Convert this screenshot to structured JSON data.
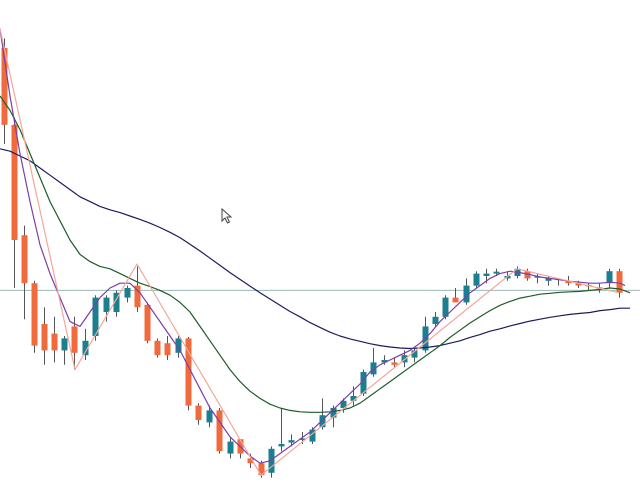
{
  "chart_data": {
    "type": "candlestick",
    "ylim": [
      0,
      100
    ],
    "grid": false,
    "colors": {
      "up": "#1a7f8e",
      "down": "#f06a3c",
      "hline": "#9ab8b4",
      "ma_fast": "#7b3fa8",
      "ma_mid": "#1e5c2a",
      "ma_slow": "#1c1c5c",
      "zigzag": "#f2a79a",
      "wick": "#555555"
    },
    "hline_value": 39.5,
    "candles": [
      {
        "x": 4,
        "o": 90.0,
        "h": 92.0,
        "l": 70.0,
        "c": 74.0
      },
      {
        "x": 14,
        "o": 74.0,
        "h": 75.5,
        "l": 40.0,
        "c": 50.0
      },
      {
        "x": 24,
        "o": 51.0,
        "h": 53.0,
        "l": 33.5,
        "c": 41.0
      },
      {
        "x": 34,
        "o": 41.0,
        "h": 41.5,
        "l": 26.5,
        "c": 28.0
      },
      {
        "x": 44,
        "o": 32.5,
        "h": 36.0,
        "l": 24.0,
        "c": 27.0
      },
      {
        "x": 54,
        "o": 30.5,
        "h": 34.0,
        "l": 24.5,
        "c": 27.0
      },
      {
        "x": 64,
        "o": 27.0,
        "h": 30.0,
        "l": 24.0,
        "c": 29.5
      },
      {
        "x": 74,
        "o": 32.0,
        "h": 34.0,
        "l": 23.0,
        "c": 26.5
      },
      {
        "x": 85,
        "o": 26.0,
        "h": 31.5,
        "l": 25.0,
        "c": 29.0
      },
      {
        "x": 95,
        "o": 30.0,
        "h": 38.5,
        "l": 29.0,
        "c": 38.0
      },
      {
        "x": 106,
        "o": 35.0,
        "h": 38.5,
        "l": 33.0,
        "c": 38.0
      },
      {
        "x": 116,
        "o": 35.0,
        "h": 39.5,
        "l": 34.0,
        "c": 39.0
      },
      {
        "x": 127,
        "o": 38.0,
        "h": 40.5,
        "l": 37.0,
        "c": 40.0
      },
      {
        "x": 137,
        "o": 40.5,
        "h": 44.5,
        "l": 35.0,
        "c": 36.0
      },
      {
        "x": 147,
        "o": 36.5,
        "h": 37.0,
        "l": 28.5,
        "c": 29.0
      },
      {
        "x": 157,
        "o": 29.0,
        "h": 29.5,
        "l": 25.5,
        "c": 26.0
      },
      {
        "x": 167,
        "o": 28.5,
        "h": 30.0,
        "l": 25.0,
        "c": 26.0
      },
      {
        "x": 178,
        "o": 26.5,
        "h": 30.0,
        "l": 25.5,
        "c": 29.5
      },
      {
        "x": 188,
        "o": 29.5,
        "h": 29.8,
        "l": 14.5,
        "c": 15.5
      },
      {
        "x": 198,
        "o": 15.5,
        "h": 16.0,
        "l": 11.5,
        "c": 12.5
      },
      {
        "x": 209,
        "o": 12.0,
        "h": 15.5,
        "l": 11.0,
        "c": 14.5
      },
      {
        "x": 219,
        "o": 14.5,
        "h": 15.0,
        "l": 5.5,
        "c": 6.0
      },
      {
        "x": 230,
        "o": 5.5,
        "h": 9.0,
        "l": 4.5,
        "c": 8.0
      },
      {
        "x": 240,
        "o": 8.5,
        "h": 8.5,
        "l": 4.5,
        "c": 5.5
      },
      {
        "x": 250,
        "o": 4.5,
        "h": 5.5,
        "l": 2.5,
        "c": 3.5
      },
      {
        "x": 261,
        "o": 3.5,
        "h": 4.0,
        "l": 0.5,
        "c": 1.0
      },
      {
        "x": 271,
        "o": 1.5,
        "h": 7.0,
        "l": 0.5,
        "c": 6.5
      },
      {
        "x": 281,
        "o": 7.0,
        "h": 15.0,
        "l": 6.0,
        "c": 7.5
      },
      {
        "x": 291,
        "o": 7.8,
        "h": 9.5,
        "l": 7.0,
        "c": 8.3
      },
      {
        "x": 302,
        "o": 8.3,
        "h": 10.0,
        "l": 7.5,
        "c": 8.5
      },
      {
        "x": 312,
        "o": 8.0,
        "h": 11.0,
        "l": 7.5,
        "c": 10.5
      },
      {
        "x": 322,
        "o": 11.0,
        "h": 17.0,
        "l": 10.5,
        "c": 13.5
      },
      {
        "x": 333,
        "o": 13.0,
        "h": 15.5,
        "l": 11.0,
        "c": 15.0
      },
      {
        "x": 343,
        "o": 15.0,
        "h": 17.0,
        "l": 14.0,
        "c": 16.5
      },
      {
        "x": 353,
        "o": 16.5,
        "h": 19.5,
        "l": 15.5,
        "c": 17.5
      },
      {
        "x": 363,
        "o": 18.0,
        "h": 23.0,
        "l": 17.5,
        "c": 22.5
      },
      {
        "x": 373,
        "o": 22.0,
        "h": 27.5,
        "l": 21.5,
        "c": 24.5
      },
      {
        "x": 384,
        "o": 24.5,
        "h": 26.0,
        "l": 24.0,
        "c": 25.0
      },
      {
        "x": 394,
        "o": 24.5,
        "h": 25.5,
        "l": 23.5,
        "c": 24.0
      },
      {
        "x": 404,
        "o": 24.5,
        "h": 27.0,
        "l": 23.5,
        "c": 26.0
      },
      {
        "x": 414,
        "o": 25.5,
        "h": 27.5,
        "l": 24.5,
        "c": 27.0
      },
      {
        "x": 425,
        "o": 27.0,
        "h": 34.0,
        "l": 26.5,
        "c": 32.0
      },
      {
        "x": 435,
        "o": 32.5,
        "h": 35.0,
        "l": 32.0,
        "c": 34.0
      },
      {
        "x": 445,
        "o": 34.0,
        "h": 38.5,
        "l": 33.5,
        "c": 38.0
      },
      {
        "x": 455,
        "o": 38.0,
        "h": 40.0,
        "l": 37.0,
        "c": 37.0
      },
      {
        "x": 466,
        "o": 37.0,
        "h": 42.0,
        "l": 36.5,
        "c": 40.5
      },
      {
        "x": 476,
        "o": 40.5,
        "h": 43.5,
        "l": 40.0,
        "c": 43.0
      },
      {
        "x": 486,
        "o": 42.5,
        "h": 44.0,
        "l": 41.0,
        "c": 43.0
      },
      {
        "x": 496,
        "o": 43.0,
        "h": 44.0,
        "l": 42.5,
        "c": 43.4
      },
      {
        "x": 507,
        "o": 42.0,
        "h": 43.5,
        "l": 41.5,
        "c": 42.5
      },
      {
        "x": 517,
        "o": 42.5,
        "h": 44.5,
        "l": 42.0,
        "c": 44.0
      },
      {
        "x": 527,
        "o": 43.5,
        "h": 44.0,
        "l": 41.5,
        "c": 42.0
      },
      {
        "x": 537,
        "o": 42.0,
        "h": 43.0,
        "l": 41.0,
        "c": 42.3
      },
      {
        "x": 548,
        "o": 41.5,
        "h": 42.5,
        "l": 40.5,
        "c": 42.0
      },
      {
        "x": 558,
        "o": 41.5,
        "h": 42.0,
        "l": 40.5,
        "c": 41.8
      },
      {
        "x": 568,
        "o": 41.5,
        "h": 42.5,
        "l": 40.5,
        "c": 41.0
      },
      {
        "x": 578,
        "o": 41.0,
        "h": 41.5,
        "l": 40.0,
        "c": 40.5
      },
      {
        "x": 588,
        "o": 40.5,
        "h": 41.0,
        "l": 39.5,
        "c": 40.2
      },
      {
        "x": 599,
        "o": 40.0,
        "h": 41.0,
        "l": 39.0,
        "c": 39.8
      },
      {
        "x": 609,
        "o": 41.0,
        "h": 44.0,
        "l": 40.0,
        "c": 43.5
      },
      {
        "x": 619,
        "o": 43.5,
        "h": 44.0,
        "l": 38.0,
        "c": 39.0
      }
    ],
    "ma_fast": [
      [
        0,
        94
      ],
      [
        10,
        80
      ],
      [
        20,
        68
      ],
      [
        30,
        58
      ],
      [
        40,
        49
      ],
      [
        50,
        43
      ],
      [
        60,
        38
      ],
      [
        70,
        33
      ],
      [
        80,
        32
      ],
      [
        90,
        35
      ],
      [
        100,
        38
      ],
      [
        110,
        40
      ],
      [
        120,
        41
      ],
      [
        130,
        41
      ],
      [
        140,
        39
      ],
      [
        150,
        36
      ],
      [
        160,
        33
      ],
      [
        170,
        30
      ],
      [
        180,
        27
      ],
      [
        190,
        23
      ],
      [
        200,
        19
      ],
      [
        210,
        15
      ],
      [
        220,
        12
      ],
      [
        230,
        9
      ],
      [
        240,
        7
      ],
      [
        250,
        5
      ],
      [
        260,
        3.5
      ],
      [
        270,
        4
      ],
      [
        280,
        5.5
      ],
      [
        290,
        7
      ],
      [
        300,
        8.5
      ],
      [
        310,
        10
      ],
      [
        320,
        12
      ],
      [
        330,
        14
      ],
      [
        340,
        16
      ],
      [
        350,
        18
      ],
      [
        360,
        20
      ],
      [
        370,
        22.5
      ],
      [
        380,
        24
      ],
      [
        390,
        25
      ],
      [
        400,
        26
      ],
      [
        410,
        27
      ],
      [
        420,
        28.5
      ],
      [
        430,
        30.5
      ],
      [
        440,
        33
      ],
      [
        450,
        35
      ],
      [
        460,
        37
      ],
      [
        470,
        39
      ],
      [
        480,
        40.5
      ],
      [
        490,
        42
      ],
      [
        500,
        43
      ],
      [
        510,
        43.5
      ],
      [
        520,
        43.2
      ],
      [
        530,
        42.8
      ],
      [
        540,
        42.3
      ],
      [
        550,
        42
      ],
      [
        560,
        41.7
      ],
      [
        570,
        41.4
      ],
      [
        580,
        41.2
      ],
      [
        590,
        41
      ],
      [
        600,
        41
      ],
      [
        610,
        41.2
      ],
      [
        620,
        41
      ],
      [
        625,
        40.5
      ]
    ],
    "ma_mid": [
      [
        0,
        80
      ],
      [
        10,
        77
      ],
      [
        20,
        73
      ],
      [
        30,
        68
      ],
      [
        40,
        63
      ],
      [
        50,
        58
      ],
      [
        60,
        54
      ],
      [
        70,
        50
      ],
      [
        80,
        47
      ],
      [
        90,
        45.5
      ],
      [
        100,
        44.5
      ],
      [
        110,
        44
      ],
      [
        120,
        43
      ],
      [
        130,
        42
      ],
      [
        140,
        41
      ],
      [
        150,
        40.3
      ],
      [
        160,
        39.5
      ],
      [
        170,
        38.5
      ],
      [
        180,
        37
      ],
      [
        190,
        35
      ],
      [
        200,
        32
      ],
      [
        210,
        29
      ],
      [
        220,
        26
      ],
      [
        230,
        23
      ],
      [
        240,
        20.5
      ],
      [
        250,
        18.5
      ],
      [
        260,
        17
      ],
      [
        270,
        15.8
      ],
      [
        280,
        15
      ],
      [
        290,
        14.5
      ],
      [
        300,
        14.2
      ],
      [
        310,
        14.1
      ],
      [
        320,
        14.1
      ],
      [
        330,
        14.2
      ],
      [
        340,
        14.5
      ],
      [
        350,
        15
      ],
      [
        360,
        16
      ],
      [
        370,
        17.5
      ],
      [
        380,
        19
      ],
      [
        390,
        20.5
      ],
      [
        400,
        22
      ],
      [
        410,
        23.5
      ],
      [
        420,
        25
      ],
      [
        430,
        26.5
      ],
      [
        440,
        28
      ],
      [
        450,
        29.7
      ],
      [
        460,
        31.2
      ],
      [
        470,
        32.7
      ],
      [
        480,
        34
      ],
      [
        490,
        35.3
      ],
      [
        500,
        36.4
      ],
      [
        510,
        37.2
      ],
      [
        520,
        37.9
      ],
      [
        530,
        38.3
      ],
      [
        540,
        38.7
      ],
      [
        550,
        38.9
      ],
      [
        560,
        39.1
      ],
      [
        570,
        39.2
      ],
      [
        580,
        39.3
      ],
      [
        590,
        39.5
      ],
      [
        600,
        39.7
      ],
      [
        610,
        40
      ],
      [
        620,
        39.8
      ],
      [
        630,
        39
      ]
    ],
    "ma_slow": [
      [
        0,
        69
      ],
      [
        10,
        68.5
      ],
      [
        20,
        67.5
      ],
      [
        30,
        66.5
      ],
      [
        40,
        65
      ],
      [
        50,
        63.5
      ],
      [
        60,
        62
      ],
      [
        70,
        60.5
      ],
      [
        80,
        59
      ],
      [
        90,
        58
      ],
      [
        100,
        57
      ],
      [
        110,
        56.3
      ],
      [
        120,
        55.7
      ],
      [
        130,
        55
      ],
      [
        140,
        54.3
      ],
      [
        150,
        53.5
      ],
      [
        160,
        52.6
      ],
      [
        170,
        51.6
      ],
      [
        180,
        50.5
      ],
      [
        190,
        49.1
      ],
      [
        200,
        47.7
      ],
      [
        210,
        46.2
      ],
      [
        220,
        44.7
      ],
      [
        230,
        43.2
      ],
      [
        240,
        41.8
      ],
      [
        250,
        40.4
      ],
      [
        260,
        39
      ],
      [
        270,
        37.7
      ],
      [
        280,
        36.4
      ],
      [
        290,
        35.1
      ],
      [
        300,
        34
      ],
      [
        310,
        32.8
      ],
      [
        320,
        31.8
      ],
      [
        330,
        30.8
      ],
      [
        340,
        30
      ],
      [
        350,
        29.4
      ],
      [
        360,
        28.9
      ],
      [
        370,
        28.4
      ],
      [
        380,
        28
      ],
      [
        390,
        27.7
      ],
      [
        400,
        27.5
      ],
      [
        410,
        27.4
      ],
      [
        420,
        27.5
      ],
      [
        430,
        27.7
      ],
      [
        440,
        28
      ],
      [
        450,
        28.5
      ],
      [
        460,
        29
      ],
      [
        470,
        29.7
      ],
      [
        480,
        30.3
      ],
      [
        490,
        31
      ],
      [
        500,
        31.5
      ],
      [
        510,
        32.1
      ],
      [
        520,
        32.6
      ],
      [
        530,
        33.1
      ],
      [
        540,
        33.5
      ],
      [
        550,
        33.9
      ],
      [
        560,
        34.2
      ],
      [
        570,
        34.5
      ],
      [
        580,
        34.7
      ],
      [
        590,
        34.9
      ],
      [
        600,
        35.3
      ],
      [
        610,
        35.5
      ],
      [
        620,
        35.8
      ],
      [
        630,
        35.8
      ]
    ],
    "zigzag": [
      [
        0,
        94
      ],
      [
        75,
        23
      ],
      [
        137,
        45
      ],
      [
        261,
        1
      ],
      [
        517,
        44
      ],
      [
        619,
        39
      ]
    ]
  }
}
